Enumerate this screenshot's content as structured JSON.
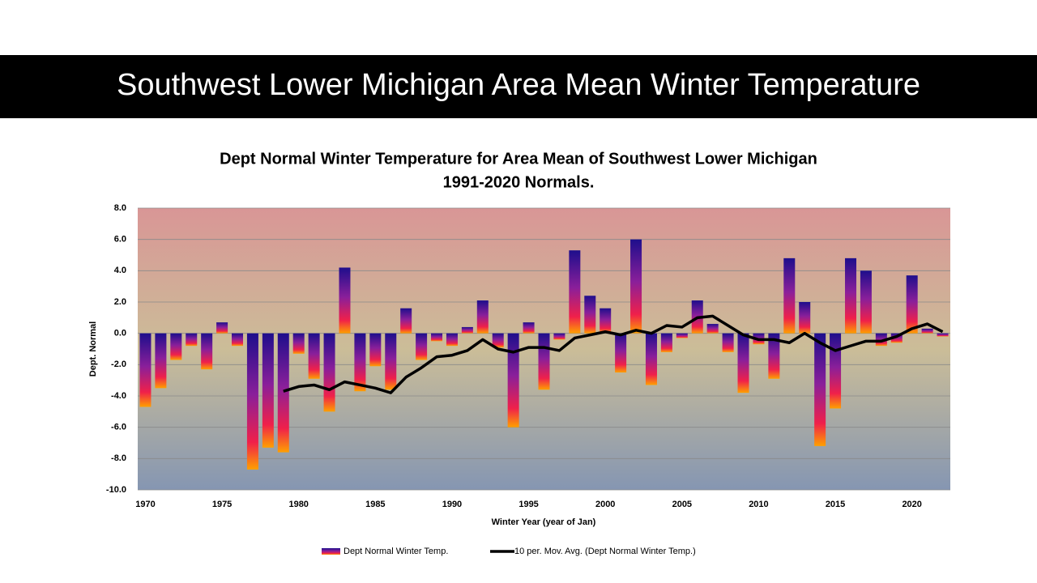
{
  "page_title": "Southwest Lower Michigan Area Mean Winter Temperature",
  "chart_data": {
    "type": "bar",
    "title": "Dept Normal Winter Temperature for Area Mean of Southwest Lower Michigan",
    "subtitle": "1991-2020 Normals.",
    "x_label": "Winter Year (year of Jan)",
    "y_label": "Dept. Normal",
    "x": [
      1970,
      1971,
      1972,
      1973,
      1974,
      1975,
      1976,
      1977,
      1978,
      1979,
      1980,
      1981,
      1982,
      1983,
      1984,
      1985,
      1986,
      1987,
      1988,
      1989,
      1990,
      1991,
      1992,
      1993,
      1994,
      1995,
      1996,
      1997,
      1998,
      1999,
      2000,
      2001,
      2002,
      2003,
      2004,
      2005,
      2006,
      2007,
      2008,
      2009,
      2010,
      2011,
      2012,
      2013,
      2014,
      2015,
      2016,
      2017,
      2018,
      2019,
      2020,
      2021,
      2022
    ],
    "series": [
      {
        "name": "Dept Normal Winter Temp.",
        "type": "bar",
        "color": "#1e0e8c",
        "values": [
          -4.7,
          -3.5,
          -1.7,
          -0.8,
          -2.3,
          0.7,
          -0.8,
          -8.7,
          -7.3,
          -7.6,
          -1.3,
          -2.9,
          -5.0,
          4.2,
          -3.7,
          -2.1,
          -3.6,
          1.6,
          -1.7,
          -0.5,
          -0.8,
          0.4,
          2.1,
          -0.9,
          -6.0,
          0.7,
          -3.6,
          -0.4,
          5.3,
          2.4,
          1.6,
          -2.5,
          6.0,
          -3.3,
          -1.2,
          -0.3,
          2.1,
          0.6,
          -1.2,
          -3.8,
          -0.7,
          -2.9,
          4.8,
          2.0,
          -7.2,
          -4.8,
          4.8,
          4.0,
          -0.8,
          -0.6,
          3.7,
          0.3,
          -0.2
        ]
      },
      {
        "name": "10 per. Mov. Avg. (Dept Normal Winter Temp.)",
        "type": "line",
        "color": "#000000",
        "values": [
          null,
          null,
          null,
          null,
          null,
          null,
          null,
          null,
          null,
          -3.7,
          -3.4,
          -3.3,
          -3.6,
          -3.1,
          -3.3,
          -3.5,
          -3.8,
          -2.8,
          -2.2,
          -1.5,
          -1.4,
          -1.1,
          -0.4,
          -1.0,
          -1.2,
          -0.9,
          -0.9,
          -1.1,
          -0.3,
          -0.1,
          0.1,
          -0.1,
          0.2,
          0.0,
          0.5,
          0.4,
          1.0,
          1.1,
          0.5,
          -0.1,
          -0.4,
          -0.4,
          -0.6,
          0.0,
          -0.6,
          -1.1,
          -0.8,
          -0.5,
          -0.5,
          -0.2,
          0.3,
          0.6,
          0.1
        ]
      }
    ],
    "xlim": [
      1969.5,
      2022.5
    ],
    "xticks": [
      1970,
      1975,
      1980,
      1985,
      1990,
      1995,
      2000,
      2005,
      2010,
      2015,
      2020
    ],
    "ylim": [
      -10,
      8
    ],
    "yticks": [
      {
        "value": -10,
        "label": "-10.0"
      },
      {
        "value": -8,
        "label": "-8.0"
      },
      {
        "value": -6,
        "label": "-6.0"
      },
      {
        "value": -4,
        "label": "-4.0"
      },
      {
        "value": -2,
        "label": "-2.0"
      },
      {
        "value": 0,
        "label": "0.0"
      },
      {
        "value": 2,
        "label": "2.0"
      },
      {
        "value": 4,
        "label": "4.0"
      },
      {
        "value": 6,
        "label": "6.0"
      },
      {
        "value": 8,
        "label": "8.0"
      }
    ],
    "grid": true,
    "legend": "bottom"
  }
}
